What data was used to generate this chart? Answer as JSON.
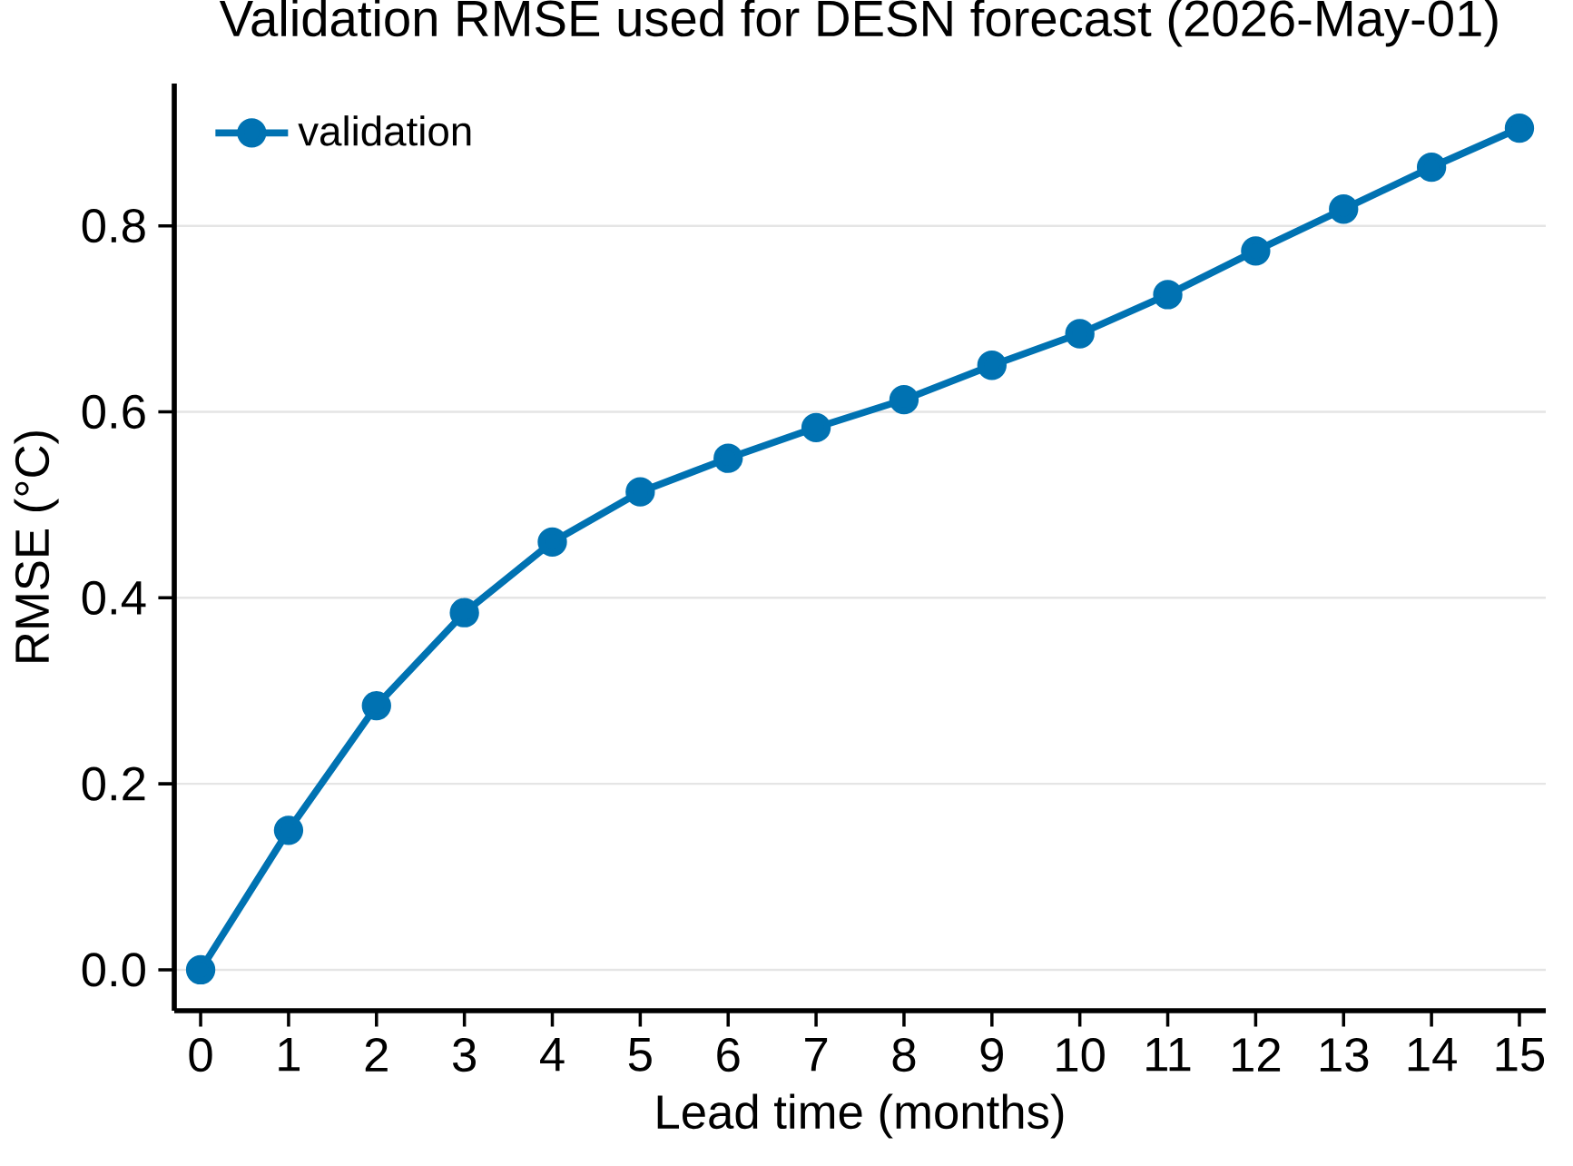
{
  "chart_data": {
    "type": "line",
    "title": "Validation RMSE used for DESN forecast (2026-May-01)",
    "xlabel": "Lead time (months)",
    "ylabel": "RMSE (°C)",
    "x": [
      0,
      1,
      2,
      3,
      4,
      5,
      6,
      7,
      8,
      9,
      10,
      11,
      12,
      13,
      14,
      15
    ],
    "series": [
      {
        "name": "validation",
        "color": "#0072b2",
        "values": [
          0.0,
          0.15,
          0.284,
          0.384,
          0.46,
          0.514,
          0.55,
          0.583,
          0.613,
          0.65,
          0.684,
          0.726,
          0.773,
          0.818,
          0.863,
          0.905
        ]
      }
    ],
    "xlim": [
      -0.3,
      15.3
    ],
    "ylim": [
      -0.044,
      0.953
    ],
    "xticks": [
      0,
      1,
      2,
      3,
      4,
      5,
      6,
      7,
      8,
      9,
      10,
      11,
      12,
      13,
      14,
      15
    ],
    "yticks": [
      {
        "value": 0,
        "label": "0.0"
      },
      {
        "value": 0.2,
        "label": "0.2"
      },
      {
        "value": 0.4,
        "label": "0.4"
      },
      {
        "value": 0.6,
        "label": "0.6"
      },
      {
        "value": 0.8,
        "label": "0.8"
      }
    ],
    "grid": "y",
    "legend": "top left",
    "marker": "circle",
    "line_style": "solid"
  }
}
